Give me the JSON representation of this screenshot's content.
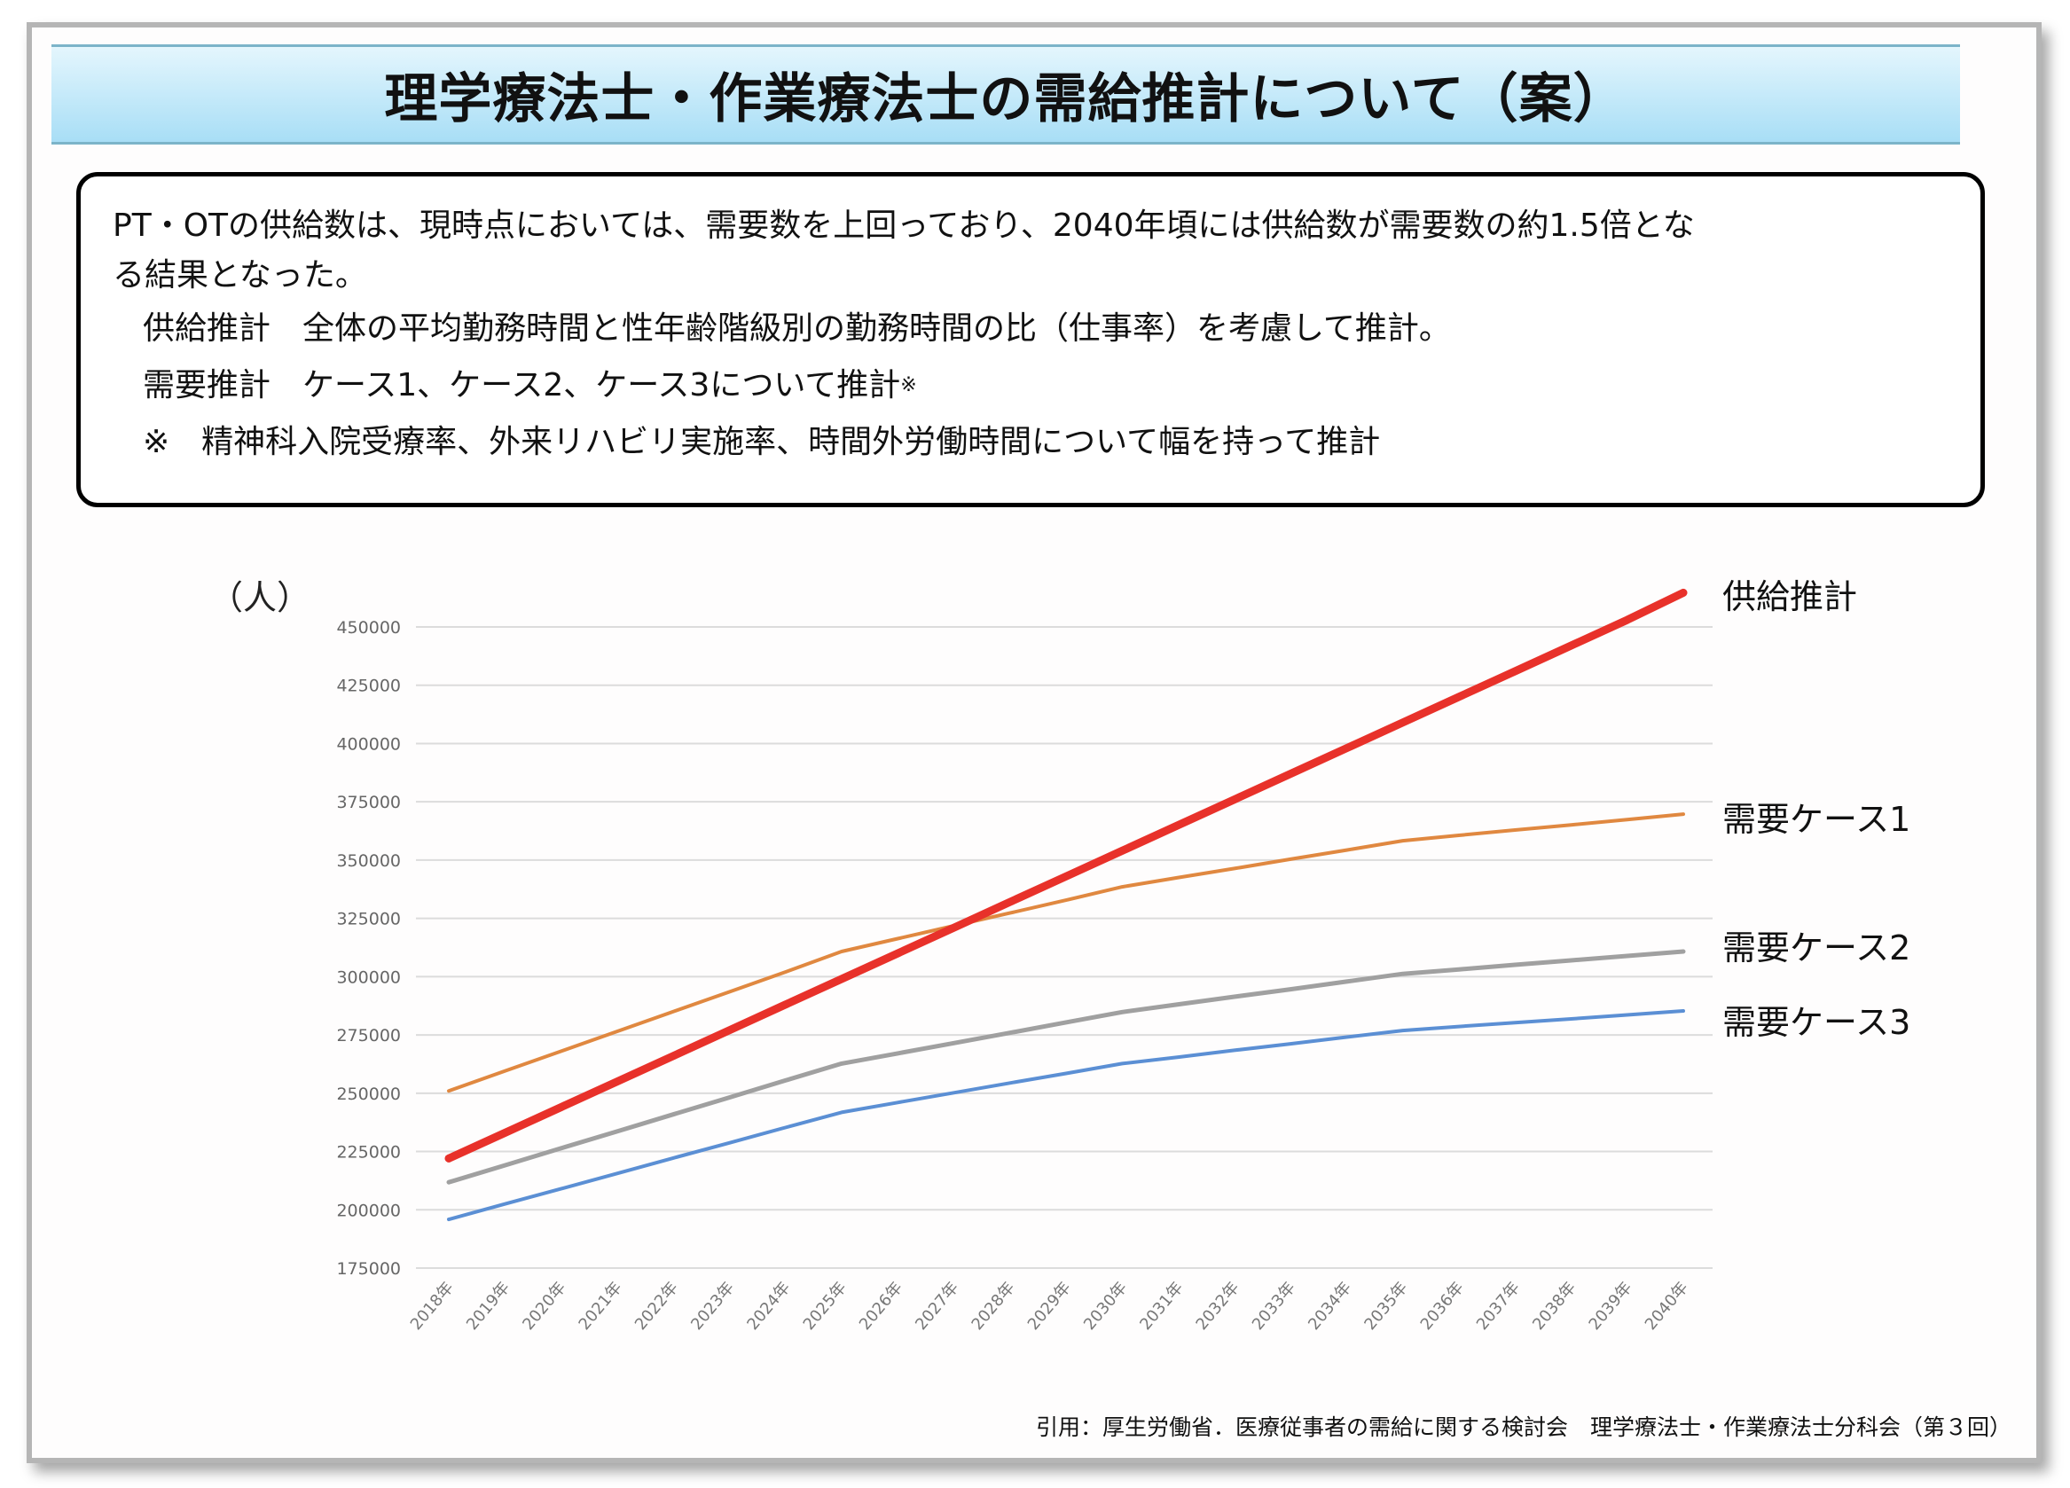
{
  "title": "理学療法士・作業療法士の需給推計について（案）",
  "summary": {
    "line1": "PT・OTの供給数は、現時点においては、需要数を上回っており、2040年頃には供給数が需要数の約1.5倍とな",
    "line2": "る結果となった。",
    "supply_label": "供給推計",
    "supply_text": "全体の平均勤務時間と性年齢階級別の勤務時間の比（仕事率）を考慮して推計。",
    "demand_label": "需要推計",
    "demand_text": "ケース1、ケース2、ケース3について推計",
    "demand_mark": "※",
    "note_mark": "※",
    "note_text": "精神科入院受療率、外来リハビリ実施率、時間外労働時間について幅を持って推計"
  },
  "source": "引用：厚生労働省．医療従事者の需給に関する検討会　理学療法士・作業療法士分科会（第３回）",
  "chart_data": {
    "type": "line",
    "title": "",
    "ylabel": "（人）",
    "xlabel": "",
    "ylim": [
      175000,
      450000
    ],
    "yticks": [
      "450000",
      "425000",
      "400000",
      "375000",
      "350000",
      "325000",
      "300000",
      "275000",
      "250000",
      "225000",
      "200000",
      "175000"
    ],
    "grid": true,
    "legend": "right, labels at line ends",
    "categories": [
      "2018年",
      "2019年",
      "2020年",
      "2021年",
      "2022年",
      "2023年",
      "2024年",
      "2025年",
      "2026年",
      "2027年",
      "2028年",
      "2029年",
      "2030年",
      "2031年",
      "2032年",
      "2033年",
      "2034年",
      "2035年",
      "2036年",
      "2037年",
      "2038年",
      "2039年",
      "2040年"
    ],
    "series": [
      {
        "name": "供給推計",
        "color": "#e8312a",
        "width": 9,
        "values": [
          222000,
          233000,
          244000,
          255000,
          266000,
          277000,
          288000,
          299000,
          310000,
          321000,
          332000,
          343000,
          354000,
          365000,
          376000,
          387000,
          398000,
          409000,
          420000,
          431000,
          442000,
          453000,
          464700
        ]
      },
      {
        "name": "需要ケース1",
        "color": "#e08840",
        "width": 4,
        "values": [
          251000,
          259500,
          268000,
          276500,
          285000,
          293500,
          302000,
          310800,
          316300,
          321800,
          327300,
          332800,
          338500,
          342500,
          346400,
          350400,
          354300,
          358300,
          360600,
          362900,
          365100,
          367400,
          369700
        ]
      },
      {
        "name": "需要ケース2",
        "color": "#a0a0a0",
        "width": 5,
        "values": [
          211800,
          219100,
          226400,
          233600,
          240900,
          248200,
          255500,
          262700,
          267100,
          271500,
          275900,
          280400,
          284800,
          288100,
          291400,
          294600,
          297900,
          301200,
          303100,
          305100,
          307000,
          308900,
          310800
        ]
      },
      {
        "name": "需要ケース3",
        "color": "#5b8fd4",
        "width": 4,
        "values": [
          195900,
          202500,
          209000,
          215600,
          222200,
          228700,
          235300,
          241800,
          246000,
          250200,
          254400,
          258500,
          262700,
          265500,
          268400,
          271200,
          274100,
          276900,
          278600,
          280300,
          281900,
          283600,
          285300
        ]
      }
    ]
  }
}
